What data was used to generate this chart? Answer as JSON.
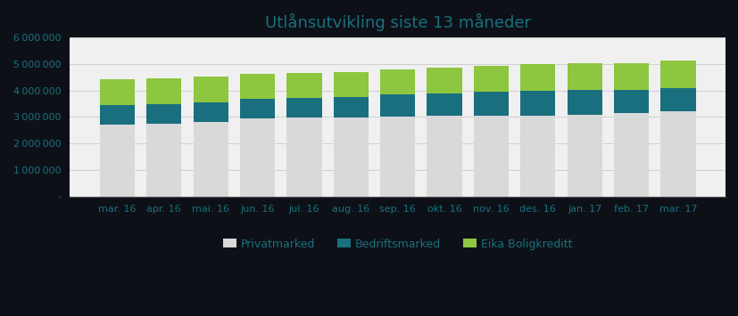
{
  "title": "Utlånsutvikling siste 13 måneder",
  "categories": [
    "mar. 16",
    "apr. 16",
    "mai. 16",
    "jun. 16",
    "jul. 16",
    "aug. 16",
    "sep. 16",
    "okt. 16",
    "nov. 16",
    "des. 16",
    "jan. 17",
    "feb. 17",
    "mar. 17"
  ],
  "privatmarked": [
    2720000,
    2760000,
    2800000,
    2950000,
    2980000,
    2990000,
    3020000,
    3030000,
    3050000,
    3060000,
    3080000,
    3160000,
    3220000
  ],
  "bedriftsmarked": [
    720000,
    740000,
    760000,
    720000,
    730000,
    760000,
    820000,
    870000,
    910000,
    940000,
    940000,
    870000,
    880000
  ],
  "eika_boligkreditt": [
    990000,
    950000,
    960000,
    960000,
    960000,
    960000,
    960000,
    960000,
    960000,
    990000,
    1000000,
    1000000,
    1020000
  ],
  "color_privatmarked": "#d9d9d9",
  "color_bedriftsmarked": "#1a6f7e",
  "color_eika": "#8dc63f",
  "ylim": [
    0,
    6000000
  ],
  "yticks": [
    0,
    1000000,
    2000000,
    3000000,
    4000000,
    5000000,
    6000000
  ],
  "outer_bg": "#0d1117",
  "plot_bg": "#f0f0f0",
  "grid_color": "#d0d0d0",
  "title_color": "#1a6f7e",
  "title_fontsize": 13,
  "tick_fontsize": 8,
  "tick_color": "#1a6f7e",
  "legend_labels": [
    "Privatmarked",
    "Bedriftsmarked",
    "Eika Boligkreditt"
  ],
  "bar_width": 0.75
}
